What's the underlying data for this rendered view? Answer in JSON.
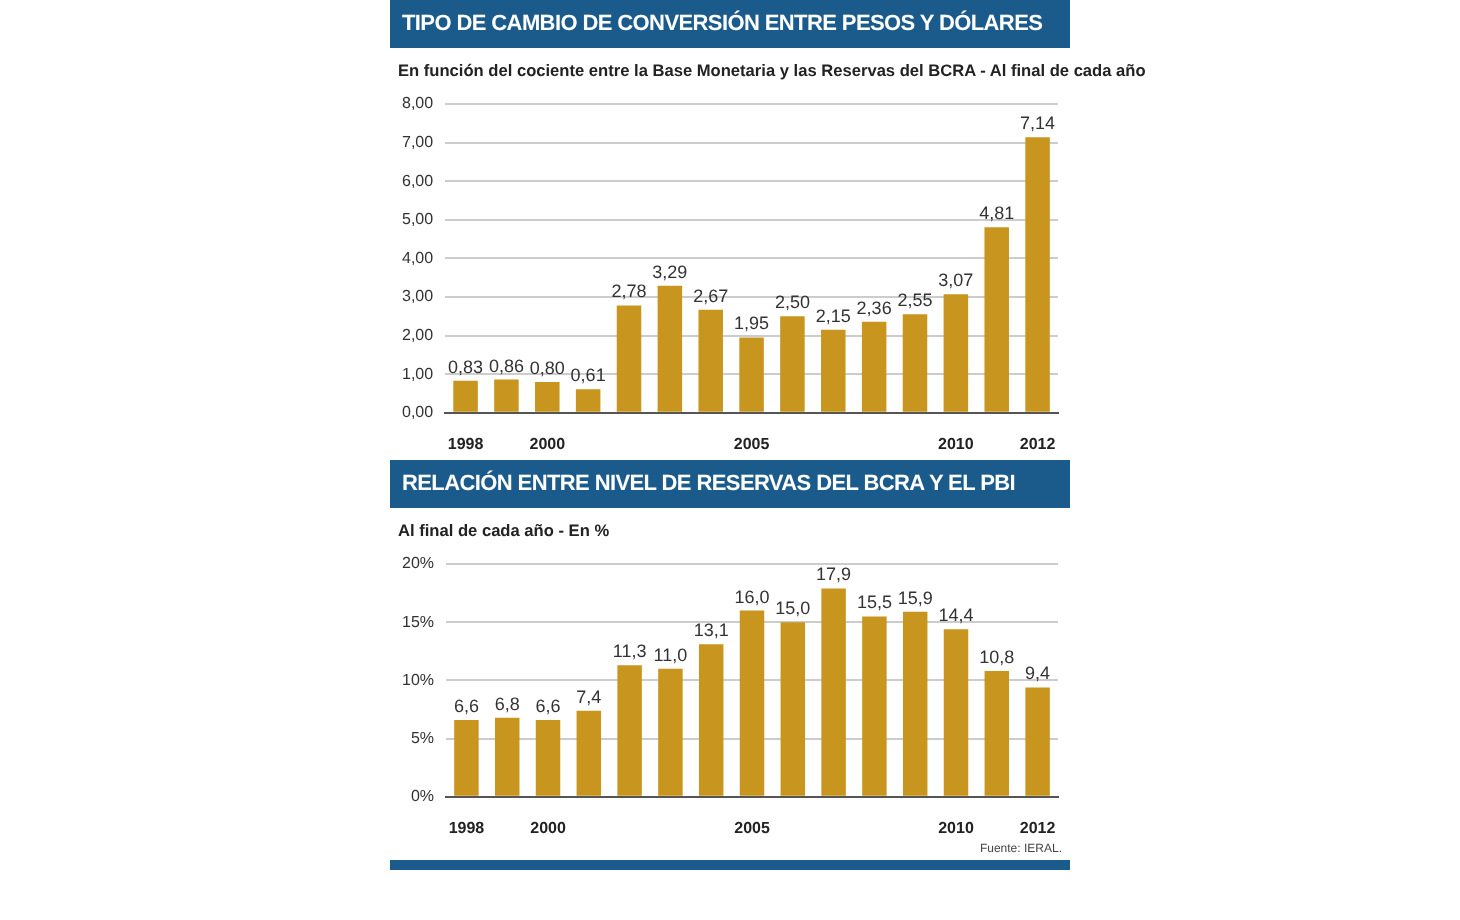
{
  "chart_data": [
    {
      "type": "bar",
      "title": "TIPO DE CAMBIO DE CONVERSIÓN ENTRE PESOS Y DÓLARES",
      "subtitle": "En función del cociente entre la Base Monetaria y las Reservas del BCRA - Al final de cada año",
      "categories": [
        "1998",
        null,
        "2000",
        null,
        null,
        null,
        null,
        "2005",
        null,
        null,
        null,
        null,
        "2010",
        null,
        "2012"
      ],
      "values": [
        0.83,
        0.86,
        0.8,
        0.61,
        2.78,
        3.29,
        2.67,
        1.95,
        2.5,
        2.15,
        2.36,
        2.55,
        3.07,
        4.81,
        7.14
      ],
      "value_labels": [
        "0,83",
        "0,86",
        "0,80",
        "0,61",
        "2,78",
        "3,29",
        "2,67",
        "1,95",
        "2,50",
        "2,15",
        "2,36",
        "2,55",
        "3,07",
        "4,81",
        "7,14"
      ],
      "color": "#c8961e",
      "ylim": [
        0,
        8
      ],
      "yticks": [
        {
          "value": 0,
          "label": "0,00"
        },
        {
          "value": 1,
          "label": "1,00"
        },
        {
          "value": 2,
          "label": "2,00"
        },
        {
          "value": 3,
          "label": "3,00"
        },
        {
          "value": 4,
          "label": "4,00"
        },
        {
          "value": 5,
          "label": "5,00"
        },
        {
          "value": 6,
          "label": "6,00"
        },
        {
          "value": 7,
          "label": "7,00"
        },
        {
          "value": 8,
          "label": "8,00"
        }
      ],
      "grid": "y",
      "legend": false
    },
    {
      "type": "bar",
      "title": "RELACIÓN ENTRE NIVEL DE RESERVAS DEL BCRA Y EL PBI",
      "subtitle": "Al final de cada año - En %",
      "categories": [
        "1998",
        null,
        "2000",
        null,
        null,
        null,
        null,
        "2005",
        null,
        null,
        null,
        null,
        "2010",
        null,
        "2012"
      ],
      "values": [
        6.6,
        6.8,
        6.6,
        7.4,
        11.3,
        11.0,
        13.1,
        16.0,
        15.0,
        17.9,
        15.5,
        15.9,
        14.4,
        10.8,
        9.4
      ],
      "value_labels": [
        "6,6",
        "6,8",
        "6,6",
        "7,4",
        "11,3",
        "11,0",
        "13,1",
        "16,0",
        "15,0",
        "17,9",
        "15,5",
        "15,9",
        "14,4",
        "10,8",
        "9,4"
      ],
      "color": "#c8961e",
      "ylim": [
        0,
        20
      ],
      "yticks": [
        {
          "value": 0,
          "label": "0%"
        },
        {
          "value": 5,
          "label": "5%"
        },
        {
          "value": 10,
          "label": "10%"
        },
        {
          "value": 15,
          "label": "15%"
        },
        {
          "value": 20,
          "label": "20%"
        }
      ],
      "grid": "y",
      "legend": false,
      "annotations": [
        "Fuente: IERAL."
      ]
    }
  ]
}
